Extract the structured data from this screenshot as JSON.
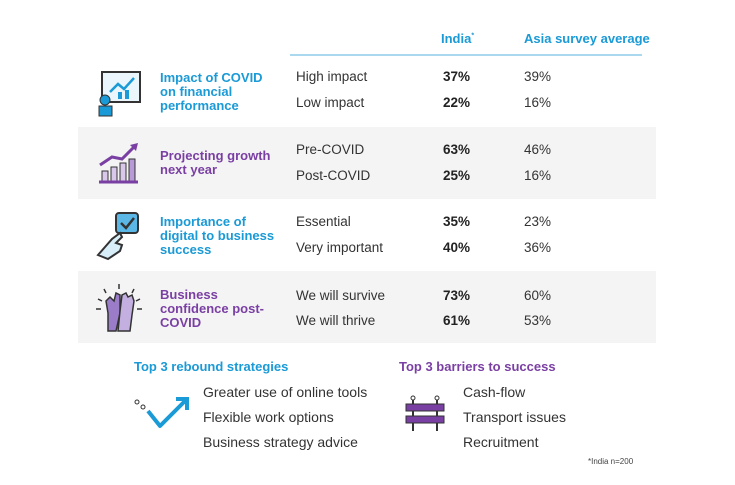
{
  "header": {
    "india": "India",
    "india_mark": "*",
    "asia": "Asia survey average"
  },
  "rows": [
    {
      "title": "Impact of COVID on financial performance",
      "items": [
        {
          "label": "High impact",
          "india": "37%",
          "asia": "39%"
        },
        {
          "label": "Low impact",
          "india": "22%",
          "asia": "16%"
        }
      ]
    },
    {
      "title": "Projecting growth next year",
      "items": [
        {
          "label": "Pre-COVID",
          "india": "63%",
          "asia": "46%"
        },
        {
          "label": "Post-COVID",
          "india": "25%",
          "asia": "16%"
        }
      ]
    },
    {
      "title": "Importance of digital to business success",
      "items": [
        {
          "label": "Essential",
          "india": "35%",
          "asia": "23%"
        },
        {
          "label": "Very important",
          "india": "40%",
          "asia": "36%"
        }
      ]
    },
    {
      "title": "Business confidence post-COVID",
      "items": [
        {
          "label": "We will survive",
          "india": "73%",
          "asia": "60%"
        },
        {
          "label": "We will thrive",
          "india": "61%",
          "asia": "53%"
        }
      ]
    }
  ],
  "rebound": {
    "title": "Top 3 rebound strategies",
    "items": [
      "Greater use of online tools",
      "Flexible work options",
      "Business strategy advice"
    ]
  },
  "barriers": {
    "title": "Top 3 barriers to success",
    "items": [
      "Cash-flow",
      "Transport issues",
      "Recruitment"
    ]
  },
  "footnote": "*India n=200",
  "colors": {
    "blue": "#1a9ad6",
    "purple": "#7a3fa3"
  }
}
